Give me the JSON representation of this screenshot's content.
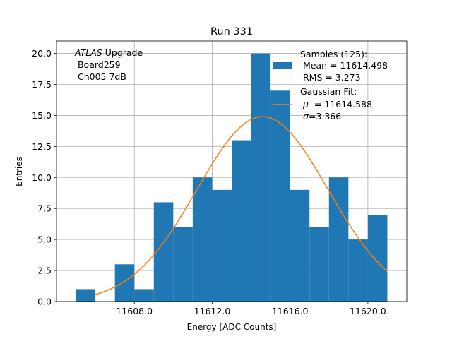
{
  "chart_data": {
    "type": "bar",
    "title": "Run 331",
    "xlabel": "Energy [ADC Counts]",
    "ylabel": "Entries",
    "xlim": [
      11604.0,
      11622.0
    ],
    "ylim": [
      0,
      21
    ],
    "grid": true,
    "xticks": [
      11608.0,
      11612.0,
      11616.0,
      11620.0
    ],
    "xtick_labels": [
      "11608.0",
      "11612.0",
      "11616.0",
      "11620.0"
    ],
    "yticks": [
      0,
      2.5,
      5,
      7.5,
      10,
      12.5,
      15,
      17.5,
      20
    ],
    "ytick_labels": [
      "0.0",
      "2.5",
      "5.0",
      "7.5",
      "10.0",
      "12.5",
      "15.0",
      "17.5",
      "20.0"
    ],
    "bins": {
      "edges": [
        11605,
        11606,
        11607,
        11608,
        11609,
        11610,
        11611,
        11612,
        11613,
        11614,
        11615,
        11616,
        11617,
        11618,
        11619,
        11620,
        11621
      ],
      "counts": [
        1,
        0,
        3,
        1,
        8,
        6,
        10,
        9,
        13,
        20,
        17,
        9,
        6,
        10,
        5,
        7
      ]
    },
    "fit": {
      "mu": 11614.588,
      "sigma": 3.366,
      "amplitude": 14.9,
      "x_range": [
        11606.0,
        11621.0
      ]
    },
    "colors": {
      "hist": "#1f77b4",
      "fit": "#ff7f0e",
      "grid": "#b0b0b0"
    },
    "annotation": {
      "italic": "ATLAS",
      "line1_rest": " Upgrade",
      "line2": " Board259",
      "line3": " Ch005 7dB"
    },
    "legend": {
      "placement": "top-right",
      "hist_label": [
        "Samples (125):",
        " Mean = 11614.498",
        " RMS = 3.273"
      ],
      "fit_label": [
        "Gaussian Fit:",
        "  = 11614.588",
        "=3.366"
      ],
      "fit_symbols": [
        "μ",
        "σ"
      ]
    }
  }
}
